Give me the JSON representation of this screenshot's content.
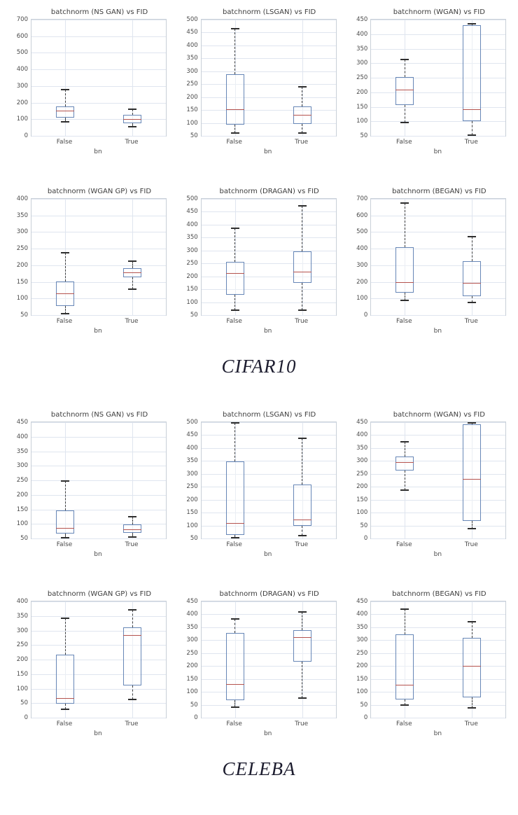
{
  "sections": [
    {
      "label": "CIFAR10"
    },
    {
      "label": "CELEBA"
    }
  ],
  "style": {
    "box_edge": "#6787b7",
    "median": "#b5534e",
    "whisker": "#3f3f3f",
    "cap": "#2e2e2e",
    "grid_line": "#dfe5ef",
    "frame": "#c9d0d8",
    "title_text": "#3d3d3d",
    "tick_text": "#4a4a4a",
    "section_label_text": "#1c1c2e"
  },
  "chart_data": [
    {
      "type": "boxplot",
      "dataset": "CIFAR10",
      "title": "batchnorm (NS GAN) vs FID",
      "xlabel": "bn",
      "ylabel": "",
      "ylim": [
        0,
        700
      ],
      "ytick_step": 100,
      "grid": true,
      "categories": [
        "False",
        "True"
      ],
      "series": [
        {
          "name": "False",
          "whislo": 85,
          "q1": 110,
          "med": 150,
          "q3": 178,
          "whishi": 280
        },
        {
          "name": "True",
          "whislo": 55,
          "q1": 75,
          "med": 100,
          "q3": 128,
          "whishi": 160
        }
      ]
    },
    {
      "type": "boxplot",
      "dataset": "CIFAR10",
      "title": "batchnorm (LSGAN) vs FID",
      "xlabel": "bn",
      "ylabel": "",
      "ylim": [
        50,
        500
      ],
      "ytick_step": 50,
      "grid": true,
      "categories": [
        "False",
        "True"
      ],
      "series": [
        {
          "name": "False",
          "whislo": 62,
          "q1": 93,
          "med": 152,
          "q3": 288,
          "whishi": 465
        },
        {
          "name": "True",
          "whislo": 62,
          "q1": 95,
          "med": 130,
          "q3": 163,
          "whishi": 240
        }
      ]
    },
    {
      "type": "boxplot",
      "dataset": "CIFAR10",
      "title": "batchnorm (WGAN) vs FID",
      "xlabel": "bn",
      "ylabel": "",
      "ylim": [
        50,
        450
      ],
      "ytick_step": 50,
      "grid": true,
      "categories": [
        "False",
        "True"
      ],
      "series": [
        {
          "name": "False",
          "whislo": 95,
          "q1": 155,
          "med": 207,
          "q3": 252,
          "whishi": 312
        },
        {
          "name": "True",
          "whislo": 52,
          "q1": 100,
          "med": 140,
          "q3": 430,
          "whishi": 435
        }
      ]
    },
    {
      "type": "boxplot",
      "dataset": "CIFAR10",
      "title": "batchnorm (WGAN GP) vs FID",
      "xlabel": "bn",
      "ylabel": "",
      "ylim": [
        50,
        400
      ],
      "ytick_step": 50,
      "grid": true,
      "categories": [
        "False",
        "True"
      ],
      "series": [
        {
          "name": "False",
          "whislo": 55,
          "q1": 78,
          "med": 115,
          "q3": 152,
          "whishi": 238
        },
        {
          "name": "True",
          "whislo": 128,
          "q1": 163,
          "med": 177,
          "q3": 192,
          "whishi": 213
        }
      ]
    },
    {
      "type": "boxplot",
      "dataset": "CIFAR10",
      "title": "batchnorm (DRAGAN) vs FID",
      "xlabel": "bn",
      "ylabel": "",
      "ylim": [
        50,
        500
      ],
      "ytick_step": 50,
      "grid": true,
      "categories": [
        "False",
        "True"
      ],
      "series": [
        {
          "name": "False",
          "whislo": 68,
          "q1": 128,
          "med": 210,
          "q3": 255,
          "whishi": 385
        },
        {
          "name": "True",
          "whislo": 70,
          "q1": 175,
          "med": 218,
          "q3": 297,
          "whishi": 472
        }
      ]
    },
    {
      "type": "boxplot",
      "dataset": "CIFAR10",
      "title": "batchnorm (BEGAN) vs FID",
      "xlabel": "bn",
      "ylabel": "",
      "ylim": [
        0,
        700
      ],
      "ytick_step": 100,
      "grid": true,
      "categories": [
        "False",
        "True"
      ],
      "series": [
        {
          "name": "False",
          "whislo": 90,
          "q1": 135,
          "med": 195,
          "q3": 410,
          "whishi": 675
        },
        {
          "name": "True",
          "whislo": 75,
          "q1": 113,
          "med": 192,
          "q3": 325,
          "whishi": 472
        }
      ]
    },
    {
      "type": "boxplot",
      "dataset": "CELEBA",
      "title": "batchnorm (NS GAN) vs FID",
      "xlabel": "bn",
      "ylabel": "",
      "ylim": [
        50,
        450
      ],
      "ytick_step": 50,
      "grid": true,
      "categories": [
        "False",
        "True"
      ],
      "series": [
        {
          "name": "False",
          "whislo": 52,
          "q1": 68,
          "med": 85,
          "q3": 147,
          "whishi": 248
        },
        {
          "name": "True",
          "whislo": 55,
          "q1": 70,
          "med": 80,
          "q3": 97,
          "whishi": 125
        }
      ]
    },
    {
      "type": "boxplot",
      "dataset": "CELEBA",
      "title": "batchnorm (LSGAN) vs FID",
      "xlabel": "bn",
      "ylabel": "",
      "ylim": [
        50,
        500
      ],
      "ytick_step": 50,
      "grid": true,
      "categories": [
        "False",
        "True"
      ],
      "series": [
        {
          "name": "False",
          "whislo": 52,
          "q1": 63,
          "med": 108,
          "q3": 348,
          "whishi": 497
        },
        {
          "name": "True",
          "whislo": 60,
          "q1": 100,
          "med": 123,
          "q3": 258,
          "whishi": 438
        }
      ]
    },
    {
      "type": "boxplot",
      "dataset": "CELEBA",
      "title": "batchnorm (WGAN) vs FID",
      "xlabel": "bn",
      "ylabel": "",
      "ylim": [
        0,
        450
      ],
      "ytick_step": 50,
      "grid": true,
      "categories": [
        "False",
        "True"
      ],
      "series": [
        {
          "name": "False",
          "whislo": 187,
          "q1": 262,
          "med": 295,
          "q3": 318,
          "whishi": 375
        },
        {
          "name": "True",
          "whislo": 38,
          "q1": 67,
          "med": 230,
          "q3": 443,
          "whishi": 446
        }
      ]
    },
    {
      "type": "boxplot",
      "dataset": "CELEBA",
      "title": "batchnorm (WGAN GP) vs FID",
      "xlabel": "bn",
      "ylabel": "",
      "ylim": [
        0,
        400
      ],
      "ytick_step": 50,
      "grid": true,
      "categories": [
        "False",
        "True"
      ],
      "series": [
        {
          "name": "False",
          "whislo": 30,
          "q1": 48,
          "med": 67,
          "q3": 217,
          "whishi": 343
        },
        {
          "name": "True",
          "whislo": 62,
          "q1": 112,
          "med": 283,
          "q3": 310,
          "whishi": 372
        }
      ]
    },
    {
      "type": "boxplot",
      "dataset": "CELEBA",
      "title": "batchnorm (DRAGAN) vs FID",
      "xlabel": "bn",
      "ylabel": "",
      "ylim": [
        0,
        450
      ],
      "ytick_step": 50,
      "grid": true,
      "categories": [
        "False",
        "True"
      ],
      "series": [
        {
          "name": "False",
          "whislo": 40,
          "q1": 68,
          "med": 130,
          "q3": 328,
          "whishi": 382
        },
        {
          "name": "True",
          "whislo": 75,
          "q1": 218,
          "med": 310,
          "q3": 338,
          "whishi": 410
        }
      ]
    },
    {
      "type": "boxplot",
      "dataset": "CELEBA",
      "title": "batchnorm (BEGAN) vs FID",
      "xlabel": "bn",
      "ylabel": "",
      "ylim": [
        0,
        450
      ],
      "ytick_step": 50,
      "grid": true,
      "categories": [
        "False",
        "True"
      ],
      "series": [
        {
          "name": "False",
          "whislo": 50,
          "q1": 70,
          "med": 127,
          "q3": 322,
          "whishi": 420
        },
        {
          "name": "True",
          "whislo": 37,
          "q1": 78,
          "med": 198,
          "q3": 308,
          "whishi": 372
        }
      ]
    }
  ]
}
